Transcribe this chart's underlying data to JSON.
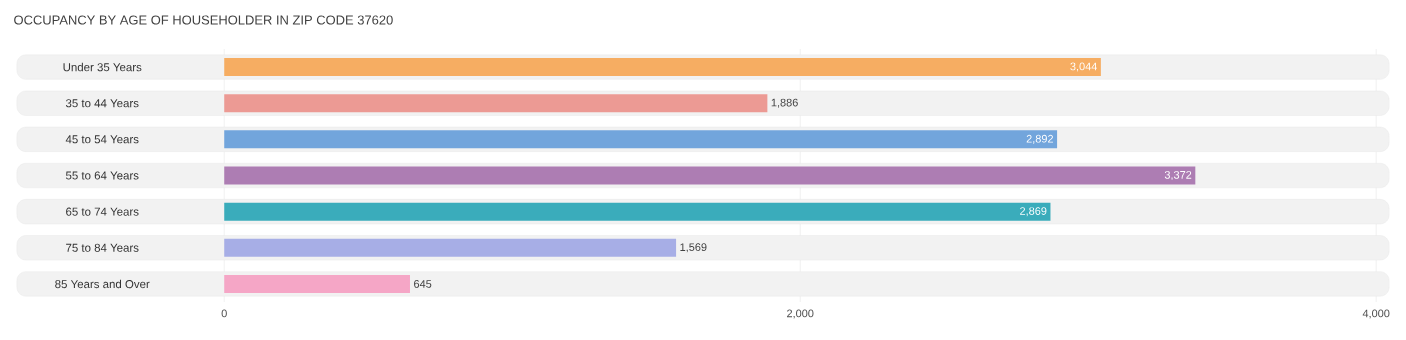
{
  "chart_data": {
    "type": "bar",
    "orientation": "horizontal",
    "title": "OCCUPANCY BY AGE OF HOUSEHOLDER IN ZIP CODE 37620",
    "categories": [
      "Under 35 Years",
      "35 to 44 Years",
      "45 to 54 Years",
      "55 to 64 Years",
      "65 to 74 Years",
      "75 to 84 Years",
      "85 Years and Over"
    ],
    "values": [
      3044,
      1886,
      2892,
      3372,
      2869,
      1569,
      645
    ],
    "colors": [
      "#f6ad62",
      "#ec9a94",
      "#72a5dc",
      "#ad7db3",
      "#3aacbb",
      "#a7aee6",
      "#f5a6c6"
    ],
    "xlim": [
      -730,
      4055
    ],
    "xticks": [
      0,
      {
        "value": 2000,
        "label": "2,000"
      },
      {
        "value": 4000,
        "label": "4,000"
      }
    ],
    "value_labels": [
      "3,044",
      "1,886",
      "2,892",
      "3,372",
      "2,869",
      "1,569",
      "645"
    ],
    "grid": "x"
  }
}
